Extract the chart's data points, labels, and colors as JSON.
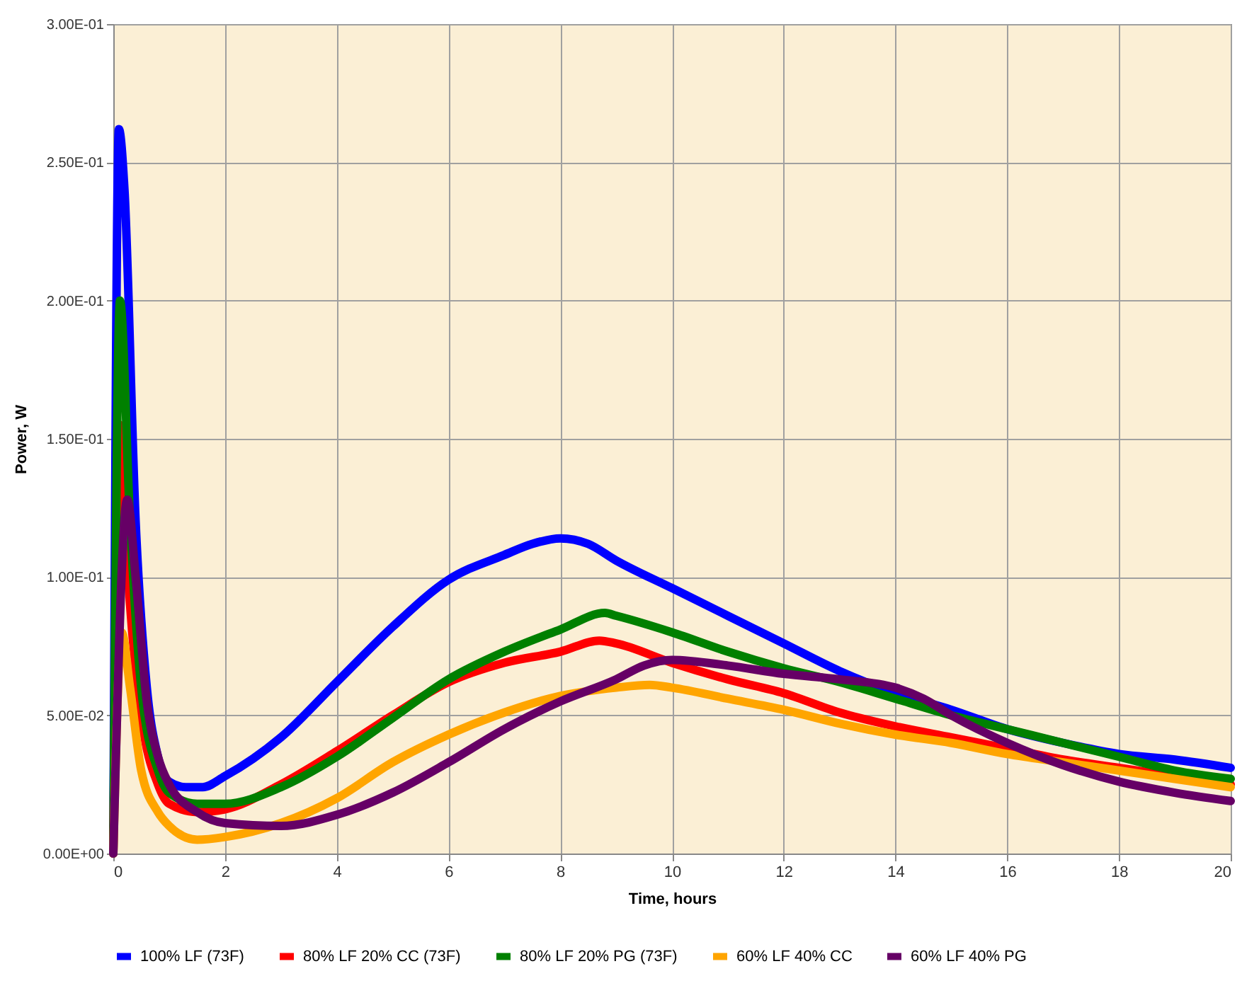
{
  "chart_data": {
    "type": "line",
    "xlabel": "Time, hours",
    "ylabel": "Power, W",
    "xlim": [
      0,
      20
    ],
    "xticks": [
      0,
      2,
      4,
      6,
      8,
      10,
      12,
      14,
      16,
      18,
      20
    ],
    "ylim": [
      0,
      0.3
    ],
    "yticks": [
      {
        "value": 0,
        "label": "0.00E+00"
      },
      {
        "value": 0.05,
        "label": "5.00E-02"
      },
      {
        "value": 0.1,
        "label": "1.00E-01"
      },
      {
        "value": 0.15,
        "label": "1.50E-01"
      },
      {
        "value": 0.2,
        "label": "2.00E-01"
      },
      {
        "value": 0.25,
        "label": "2.50E-01"
      },
      {
        "value": 0.3,
        "label": "3.00E-01"
      }
    ],
    "grid": true,
    "legend": "bottom",
    "line_style": "solid",
    "marker": "none",
    "series": [
      {
        "name": "100% LF (73F)",
        "color": "#0000ff",
        "x": [
          0,
          0.1,
          0.2,
          0.4,
          0.6,
          0.8,
          1,
          1.3,
          1.6,
          2,
          3,
          4,
          5,
          6,
          7,
          7.5,
          8,
          8.5,
          9,
          10,
          11,
          12,
          13,
          14,
          15,
          16,
          17,
          18,
          19,
          20
        ],
        "values": [
          0,
          0.262,
          0.24,
          0.12,
          0.06,
          0.035,
          0.026,
          0.024,
          0.024,
          0.028,
          0.042,
          0.062,
          0.082,
          0.099,
          0.108,
          0.112,
          0.114,
          0.112,
          0.106,
          0.096,
          0.086,
          0.076,
          0.066,
          0.058,
          0.052,
          0.045,
          0.04,
          0.036,
          0.034,
          0.031
        ]
      },
      {
        "name": "80% LF 20% CC (73F)",
        "color": "#ff0000",
        "x": [
          0,
          0.12,
          0.3,
          0.5,
          0.8,
          1,
          1.5,
          2,
          3,
          4,
          5,
          6,
          7,
          8,
          8.7,
          9,
          10,
          11,
          12,
          13,
          14,
          15,
          16,
          17,
          18,
          19,
          20
        ],
        "values": [
          0,
          0.155,
          0.09,
          0.05,
          0.025,
          0.018,
          0.015,
          0.016,
          0.025,
          0.037,
          0.05,
          0.062,
          0.069,
          0.073,
          0.077,
          0.076,
          0.069,
          0.063,
          0.058,
          0.051,
          0.046,
          0.042,
          0.038,
          0.034,
          0.031,
          0.028,
          0.025
        ]
      },
      {
        "name": "80% LF 20% PG (73F)",
        "color": "#008000",
        "x": [
          0,
          0.12,
          0.3,
          0.5,
          0.8,
          1,
          1.5,
          2,
          3,
          4,
          5,
          6,
          7,
          8,
          8.8,
          9,
          10,
          11,
          12,
          13,
          14,
          15,
          16,
          17,
          18,
          19,
          20
        ],
        "values": [
          0,
          0.2,
          0.12,
          0.06,
          0.03,
          0.022,
          0.018,
          0.018,
          0.024,
          0.035,
          0.049,
          0.063,
          0.073,
          0.081,
          0.087,
          0.086,
          0.08,
          0.073,
          0.067,
          0.062,
          0.056,
          0.05,
          0.045,
          0.04,
          0.035,
          0.03,
          0.027
        ]
      },
      {
        "name": "60% LF 40% CC",
        "color": "#ffa500",
        "x": [
          0,
          0.15,
          0.3,
          0.5,
          0.8,
          1,
          1.5,
          2,
          3,
          4,
          5,
          6,
          7,
          8,
          9,
          9.6,
          10,
          11,
          12,
          13,
          14,
          15,
          16,
          17,
          18,
          19,
          20
        ],
        "values": [
          0,
          0.08,
          0.06,
          0.03,
          0.015,
          0.01,
          0.005,
          0.006,
          0.011,
          0.02,
          0.033,
          0.043,
          0.051,
          0.057,
          0.06,
          0.061,
          0.06,
          0.056,
          0.052,
          0.047,
          0.043,
          0.04,
          0.036,
          0.033,
          0.03,
          0.027,
          0.024
        ]
      },
      {
        "name": "60% LF 40% PG",
        "color": "#660066",
        "x": [
          0,
          0.25,
          0.4,
          0.6,
          0.8,
          1,
          1.5,
          2,
          3,
          4,
          5,
          6,
          7,
          8,
          9,
          9.5,
          10,
          11,
          12,
          13,
          14,
          14.5,
          15,
          16,
          17,
          18,
          19,
          20
        ],
        "values": [
          0,
          0.128,
          0.1,
          0.055,
          0.035,
          0.025,
          0.015,
          0.011,
          0.01,
          0.014,
          0.022,
          0.033,
          0.045,
          0.055,
          0.063,
          0.068,
          0.07,
          0.068,
          0.065,
          0.063,
          0.06,
          0.056,
          0.05,
          0.04,
          0.032,
          0.026,
          0.022,
          0.019
        ]
      }
    ]
  }
}
